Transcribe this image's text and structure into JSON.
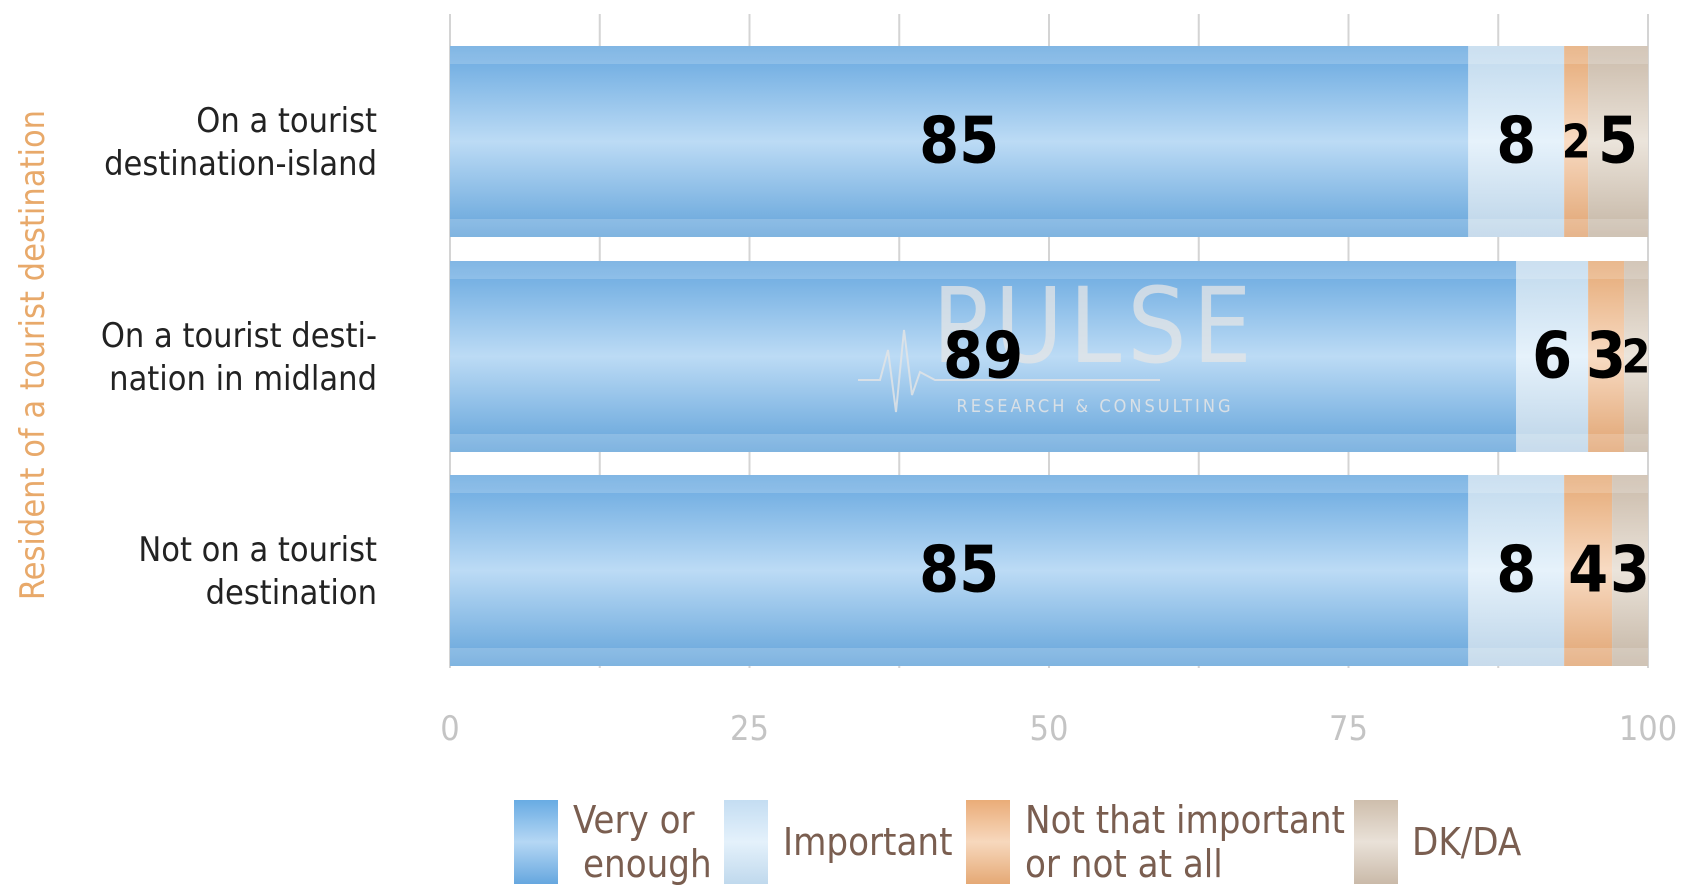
{
  "colors": {
    "very_or_enough": "#6aaee8",
    "important": "#c8e2f7",
    "not_important": "#efb07a",
    "dk_da": "#d2c2b0",
    "group_label": "#e8a96a",
    "category_text": "#222222",
    "tick_text": "#c4c4c4",
    "grid": "#d4d4d4",
    "legend_text": "#7a5e50",
    "watermark": "#e5e5e5"
  },
  "watermark": {
    "main": "PULSE",
    "sub": "RESEARCH & CONSULTING"
  },
  "chart_data": {
    "type": "bar",
    "orientation": "horizontal",
    "stacked": true,
    "y_group_label": "Resident of a tourist destination",
    "categories": [
      [
        "On a tourist",
        "destination-island"
      ],
      [
        "On a tourist desti-",
        "nation in midland"
      ],
      [
        "Not on a tourist",
        "destination"
      ]
    ],
    "series": [
      {
        "name": "Very or enough",
        "legend_lines": [
          "Very or",
          "enough"
        ],
        "color_key": "very_or_enough",
        "values": [
          85,
          89,
          85
        ]
      },
      {
        "name": "Important",
        "legend_lines": [
          "Important"
        ],
        "color_key": "important",
        "values": [
          8,
          6,
          8
        ]
      },
      {
        "name": "Not that important or not at all",
        "legend_lines": [
          "Not that important",
          "or not at all"
        ],
        "color_key": "not_important",
        "values": [
          2,
          3,
          4
        ]
      },
      {
        "name": "DK/DA",
        "legend_lines": [
          "DK/DA"
        ],
        "color_key": "dk_da",
        "values": [
          5,
          2,
          3
        ]
      }
    ],
    "xlim": [
      0,
      100
    ],
    "xticks": [
      0,
      25,
      50,
      75,
      100
    ],
    "minor_gridlines": [
      12.5,
      37.5,
      62.5,
      87.5
    ],
    "grid": true,
    "legend_position": "bottom"
  }
}
